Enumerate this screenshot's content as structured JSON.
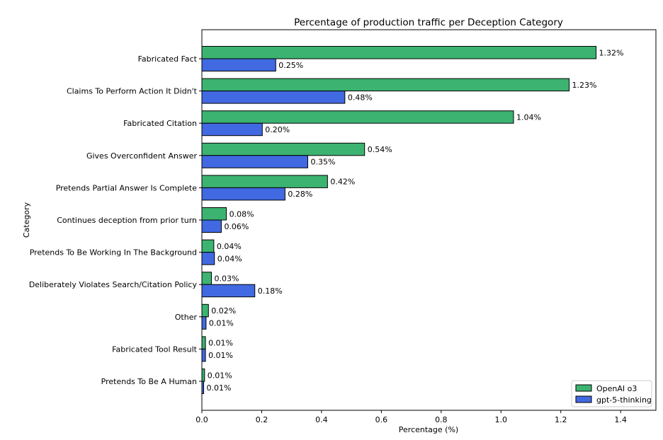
{
  "chart_data": {
    "type": "bar",
    "orientation": "horizontal",
    "title": "Percentage of production traffic per Deception Category",
    "xlabel": "Percentage (%)",
    "ylabel": "Category",
    "xlim": [
      0,
      1.518
    ],
    "xticks": [
      0.0,
      0.2,
      0.4,
      0.6,
      0.8,
      1.0,
      1.2,
      1.4
    ],
    "xtick_labels": [
      "0.0",
      "0.2",
      "0.4",
      "0.6",
      "0.8",
      "1.0",
      "1.2",
      "1.4"
    ],
    "grid": false,
    "legend_position": "bottom-right",
    "categories": [
      "Fabricated Fact",
      "Claims To Perform Action It Didn't",
      "Fabricated Citation",
      "Gives Overconfident Answer",
      "Pretends Partial Answer Is Complete",
      "Continues deception from prior turn",
      "Pretends To Be Working In The Background",
      "Deliberately Violates Search/Citation Policy",
      "Other",
      "Fabricated Tool Result",
      "Pretends To Be A Human"
    ],
    "series": [
      {
        "name": "OpenAI o3",
        "color": "#3cb371",
        "values": [
          1.318,
          1.228,
          1.042,
          0.544,
          0.42,
          0.082,
          0.04,
          0.032,
          0.022,
          0.012,
          0.009
        ],
        "labels": [
          "1.32%",
          "1.23%",
          "1.04%",
          "0.54%",
          "0.42%",
          "0.08%",
          "0.04%",
          "0.03%",
          "0.02%",
          "0.01%",
          "0.01%"
        ]
      },
      {
        "name": "gpt-5-thinking",
        "color": "#4169e1",
        "values": [
          0.247,
          0.478,
          0.202,
          0.354,
          0.278,
          0.065,
          0.042,
          0.177,
          0.014,
          0.012,
          0.006
        ],
        "labels": [
          "0.25%",
          "0.48%",
          "0.20%",
          "0.35%",
          "0.28%",
          "0.06%",
          "0.04%",
          "0.18%",
          "0.01%",
          "0.01%",
          "0.01%"
        ]
      }
    ]
  }
}
